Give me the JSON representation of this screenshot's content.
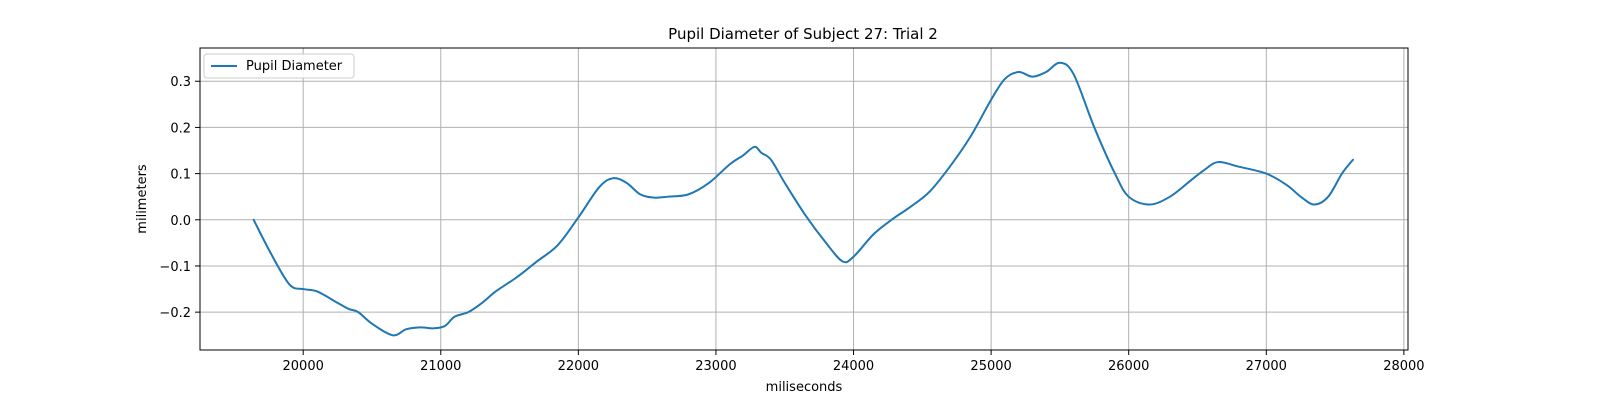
{
  "chart_data": {
    "type": "line",
    "title": "Pupil Diameter of Subject 27: Trial 2",
    "xlabel": "miliseconds",
    "ylabel": "milimeters",
    "xlim": [
      19250,
      28030
    ],
    "ylim": [
      -0.282,
      0.372
    ],
    "xticks": [
      20000,
      21000,
      22000,
      23000,
      24000,
      25000,
      26000,
      27000,
      28000
    ],
    "yticks": [
      -0.2,
      -0.1,
      0.0,
      0.1,
      0.2,
      0.3
    ],
    "xtick_labels": [
      "20000",
      "21000",
      "22000",
      "23000",
      "24000",
      "25000",
      "26000",
      "27000",
      "28000"
    ],
    "ytick_labels": [
      "−0.2",
      "−0.1",
      "0.0",
      "0.1",
      "0.2",
      "0.3"
    ],
    "grid": true,
    "legend_position": "top-left",
    "series": [
      {
        "name": "Pupil Diameter",
        "color": "#1f77b4",
        "x": [
          19640,
          19760,
          19900,
          20000,
          20100,
          20250,
          20330,
          20400,
          20500,
          20650,
          20750,
          20850,
          20950,
          21030,
          21100,
          21200,
          21300,
          21400,
          21550,
          21700,
          21850,
          22000,
          22150,
          22250,
          22350,
          22450,
          22550,
          22650,
          22800,
          22950,
          23100,
          23200,
          23280,
          23330,
          23400,
          23500,
          23650,
          23800,
          23920,
          24000,
          24150,
          24300,
          24400,
          24550,
          24700,
          24850,
          25000,
          25100,
          25200,
          25300,
          25400,
          25500,
          25600,
          25750,
          25900,
          26000,
          26150,
          26300,
          26450,
          26550,
          26650,
          26800,
          27000,
          27150,
          27250,
          27350,
          27450,
          27550,
          27630
        ],
        "y": [
          0.0,
          -0.07,
          -0.14,
          -0.15,
          -0.155,
          -0.18,
          -0.193,
          -0.2,
          -0.225,
          -0.25,
          -0.237,
          -0.233,
          -0.235,
          -0.23,
          -0.21,
          -0.2,
          -0.18,
          -0.155,
          -0.125,
          -0.09,
          -0.055,
          0.005,
          0.07,
          0.09,
          0.08,
          0.055,
          0.048,
          0.05,
          0.055,
          0.08,
          0.12,
          0.14,
          0.158,
          0.145,
          0.13,
          0.08,
          0.01,
          -0.05,
          -0.09,
          -0.08,
          -0.03,
          0.005,
          0.025,
          0.06,
          0.115,
          0.18,
          0.26,
          0.305,
          0.32,
          0.31,
          0.32,
          0.34,
          0.315,
          0.2,
          0.1,
          0.05,
          0.033,
          0.05,
          0.085,
          0.108,
          0.125,
          0.115,
          0.1,
          0.075,
          0.05,
          0.033,
          0.05,
          0.1,
          0.13
        ]
      }
    ]
  }
}
